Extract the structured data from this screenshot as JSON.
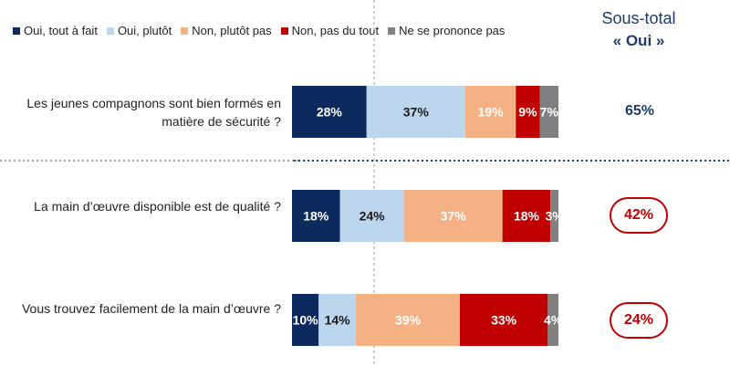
{
  "colors": {
    "oui_tout_a_fait": "#0d2a5e",
    "oui_plutot": "#bcd6ee",
    "non_plutot_pas": "#f4b183",
    "non_pas_du_tout": "#c00000",
    "nsp": "#808080",
    "subtotal_normal": "#1f3a6e",
    "subtotal_alert": "#c00000"
  },
  "legend": [
    {
      "label": "Oui, tout à fait",
      "color": "#0d2a5e"
    },
    {
      "label": "Oui, plutôt",
      "color": "#bcd6ee"
    },
    {
      "label": "Non, plutôt pas",
      "color": "#f4b183"
    },
    {
      "label": "Non, pas du tout",
      "color": "#c00000"
    },
    {
      "label": "Ne se prononce pas",
      "color": "#808080"
    }
  ],
  "subtotal_header": {
    "line1": "Sous-total",
    "line2": "« Oui »"
  },
  "questions": [
    {
      "text": "Les jeunes compagnons sont bien formés en matière de sécurité ?",
      "subtotal": "65%",
      "highlight": false
    },
    {
      "text": "La main d’œuvre disponible est de qualité ?",
      "subtotal": "42%",
      "highlight": true
    },
    {
      "text": "Vous trouvez facilement de la main d’œuvre ?",
      "subtotal": "24%",
      "highlight": true
    }
  ],
  "chart_data": {
    "type": "bar",
    "orientation": "horizontal",
    "stacked": true,
    "categories": [
      "Les jeunes compagnons sont bien formés en matière de sécurité ?",
      "La main d’œuvre disponible est de qualité ?",
      "Vous trouvez facilement de la main d’œuvre ?"
    ],
    "series": [
      {
        "name": "Oui, tout à fait",
        "values": [
          28,
          18,
          10
        ],
        "labels": [
          "28%",
          "18%",
          "10%"
        ]
      },
      {
        "name": "Oui, plutôt",
        "values": [
          37,
          24,
          14
        ],
        "labels": [
          "37%",
          "24%",
          "14%"
        ]
      },
      {
        "name": "Non, plutôt pas",
        "values": [
          19,
          37,
          39
        ],
        "labels": [
          "19%",
          "37%",
          "39%"
        ]
      },
      {
        "name": "Non, pas du tout",
        "values": [
          9,
          18,
          33
        ],
        "labels": [
          "9%",
          "18%",
          "33%"
        ]
      },
      {
        "name": "Ne se prononce pas",
        "values": [
          7,
          3,
          4
        ],
        "labels": [
          "7%",
          "3%",
          "4%"
        ]
      }
    ],
    "xlim": [
      0,
      100
    ],
    "legend_position": "top-left",
    "grid": false
  }
}
